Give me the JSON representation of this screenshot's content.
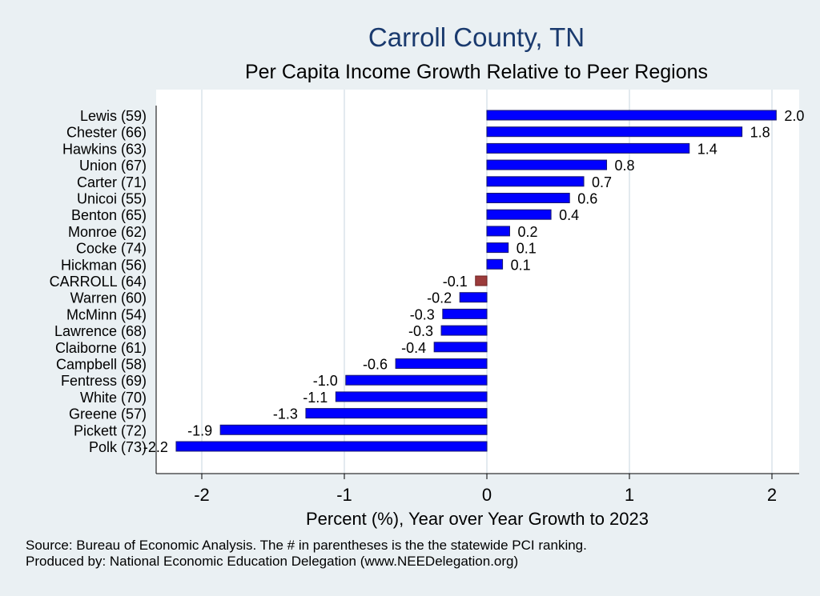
{
  "chart_data": {
    "type": "bar",
    "orientation": "horizontal",
    "title": "Carroll County, TN",
    "subtitle": "Per Capita Income Growth Relative to Peer Regions",
    "xlabel": "Percent (%), Year over Year Growth to 2023",
    "ylabel": "",
    "xlim": [
      -2.3,
      2.2
    ],
    "xticks": [
      -2,
      -1,
      0,
      1,
      2
    ],
    "xtick_labels": [
      "-2",
      "-1",
      "0",
      "1",
      "2"
    ],
    "grid": true,
    "categories": [
      "Lewis (59)",
      "Chester (66)",
      "Hawkins (63)",
      "Union (67)",
      "Carter (71)",
      "Unicoi (55)",
      "Benton (65)",
      "Monroe (62)",
      "Cocke (74)",
      "Hickman (56)",
      "CARROLL (64)",
      "Warren (60)",
      "McMinn (54)",
      "Lawrence (68)",
      "Claiborne (61)",
      "Campbell (58)",
      "Fentress (69)",
      "White (70)",
      "Greene (57)",
      "Pickett (72)",
      "Polk (73)"
    ],
    "values": [
      2.03,
      1.79,
      1.42,
      0.84,
      0.68,
      0.58,
      0.45,
      0.16,
      0.15,
      0.11,
      -0.08,
      -0.19,
      -0.31,
      -0.32,
      -0.37,
      -0.64,
      -0.99,
      -1.06,
      -1.27,
      -1.87,
      -2.18
    ],
    "data_labels": [
      "2.0",
      "1.8",
      "1.4",
      "0.8",
      "0.7",
      "0.6",
      "0.4",
      "0.2",
      "0.1",
      "0.1",
      "-0.1",
      "-0.2",
      "-0.3",
      "-0.3",
      "-0.4",
      "-0.6",
      "-1.0",
      "-1.1",
      "-1.3",
      "-1.9",
      "-2.2"
    ],
    "highlight": "CARROLL (64)",
    "colors": {
      "bar": "#0000ff",
      "bar_edge": "#1a1a6e",
      "highlight": "#9b3b3b",
      "title": "#1a3a6e",
      "background": "#eaf0f3",
      "plot_bg": "#ffffff",
      "grid": "#e3eaef"
    }
  },
  "footer": {
    "source": "Source: Bureau of Economic Analysis. The # in parentheses is the the statewide PCI ranking.",
    "produced_by": "Produced by: National Economic Education Delegation (www.NEEDelegation.org)"
  }
}
